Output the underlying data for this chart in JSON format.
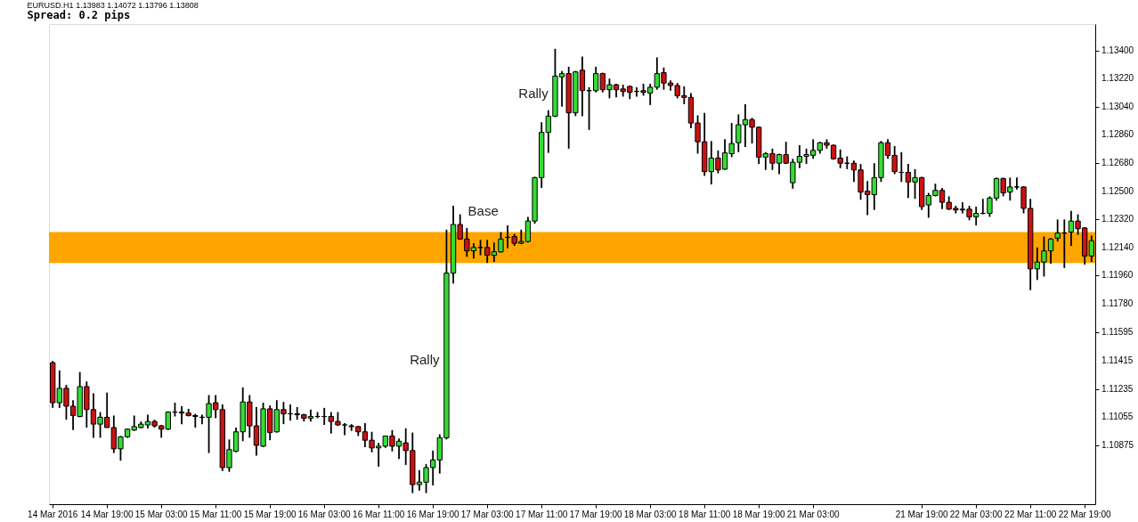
{
  "chart_data": {
    "type": "candlestick",
    "title": "EURUSD.H1  1.13983 1.14072 1.13796 1.13808",
    "subtitle": "Spread: 0.2 pips",
    "categories": [
      "14 Mar 2016",
      null,
      null,
      null,
      null,
      null,
      null,
      null,
      "14 Mar 19:00",
      null,
      null,
      null,
      null,
      null,
      null,
      null,
      "15 Mar 03:00",
      null,
      null,
      null,
      null,
      null,
      null,
      null,
      "15 Mar 11:00",
      null,
      null,
      null,
      null,
      null,
      null,
      null,
      "15 Mar 19:00",
      null,
      null,
      null,
      null,
      null,
      null,
      null,
      "16 Mar 03:00",
      null,
      null,
      null,
      null,
      null,
      null,
      null,
      "16 Mar 11:00",
      null,
      null,
      null,
      null,
      null,
      null,
      null,
      "16 Mar 19:00",
      null,
      null,
      null,
      null,
      null,
      null,
      null,
      "17 Mar 03:00",
      null,
      null,
      null,
      null,
      null,
      null,
      null,
      "17 Mar 11:00",
      null,
      null,
      null,
      null,
      null,
      null,
      null,
      "17 Mar 19:00",
      null,
      null,
      null,
      null,
      null,
      null,
      null,
      "18 Mar 03:00",
      null,
      null,
      null,
      null,
      null,
      null,
      null,
      "18 Mar 11:00",
      null,
      null,
      null,
      null,
      null,
      null,
      null,
      "18 Mar 19:00",
      null,
      null,
      null,
      null,
      null,
      null,
      null,
      "21 Mar 03:00",
      null,
      null,
      null,
      null,
      null,
      null,
      null,
      null,
      null,
      null,
      null,
      null,
      null,
      null,
      null,
      "21 Mar 19:00",
      null,
      null,
      null,
      null,
      null,
      null,
      null,
      "22 Mar 03:00",
      null,
      null,
      null,
      null,
      null,
      null,
      null,
      "22 Mar 11:00",
      null,
      null,
      null,
      null,
      null,
      null,
      null,
      "22 Mar 19:00",
      null
    ],
    "ohlc": [
      [
        1.11403,
        1.11414,
        1.11114,
        1.11147
      ],
      [
        1.11147,
        1.11354,
        1.11114,
        1.11239
      ],
      [
        1.11239,
        1.11261,
        1.11038,
        1.11125
      ],
      [
        1.11125,
        1.11163,
        1.10972,
        1.11065
      ],
      [
        1.11059,
        1.11343,
        1.11054,
        1.1125
      ],
      [
        1.1125,
        1.11283,
        1.10988,
        1.11103
      ],
      [
        1.11103,
        1.11207,
        1.10923,
        1.1101
      ],
      [
        1.1101,
        1.11087,
        1.10923,
        1.11054
      ],
      [
        1.11054,
        1.11212,
        1.10988,
        1.10988
      ],
      [
        1.10988,
        1.11065,
        1.10825,
        1.10852
      ],
      [
        1.10852,
        1.10934,
        1.10776,
        1.10929
      ],
      [
        1.10929,
        1.10983,
        1.10923,
        1.10978
      ],
      [
        1.10972,
        1.11065,
        1.10967,
        1.10994
      ],
      [
        1.10988,
        1.11027,
        1.10983,
        1.1101
      ],
      [
        1.11005,
        1.1107,
        1.10983,
        1.11027
      ],
      [
        1.11027,
        1.11038,
        1.10988,
        1.10999
      ],
      [
        1.10999,
        1.11005,
        1.10923,
        1.10978
      ],
      [
        1.10978,
        1.11092,
        1.10972,
        1.11087
      ],
      [
        1.11087,
        1.11147,
        1.11059,
        1.11087
      ],
      [
        1.11087,
        1.11125,
        1.1101,
        1.11081
      ],
      [
        1.11081,
        1.11108,
        1.11059,
        1.11065
      ],
      [
        1.11065,
        1.11076,
        1.10988,
        1.11059
      ],
      [
        1.11054,
        1.1107,
        1.1101,
        1.11054
      ],
      [
        1.11054,
        1.11196,
        1.10825,
        1.11141
      ],
      [
        1.11147,
        1.11196,
        1.11048,
        1.11103
      ],
      [
        1.11103,
        1.11136,
        1.1071,
        1.10732
      ],
      [
        1.10732,
        1.10912,
        1.10705,
        1.10847
      ],
      [
        1.10836,
        1.10988,
        1.1083,
        1.10961
      ],
      [
        1.10961,
        1.11245,
        1.10901,
        1.11152
      ],
      [
        1.11152,
        1.11196,
        1.10923,
        1.10999
      ],
      [
        1.10999,
        1.11119,
        1.10809,
        1.10874
      ],
      [
        1.10869,
        1.11147,
        1.10863,
        1.11108
      ],
      [
        1.11108,
        1.1113,
        1.10907,
        1.10956
      ],
      [
        1.10961,
        1.11163,
        1.10956,
        1.11103
      ],
      [
        1.11103,
        1.11152,
        1.1101,
        1.11076
      ],
      [
        1.11076,
        1.11136,
        1.11032,
        1.11076
      ],
      [
        1.11076,
        1.11119,
        1.11038,
        1.1107
      ],
      [
        1.1107,
        1.11076,
        1.11027,
        1.11048
      ],
      [
        1.11048,
        1.11103,
        1.11027,
        1.11059
      ],
      [
        1.11059,
        1.11087,
        1.11048,
        1.11059
      ],
      [
        1.11059,
        1.11114,
        1.11005,
        1.11059
      ],
      [
        1.11059,
        1.11087,
        1.1095,
        1.11027
      ],
      [
        1.11027,
        1.11087,
        1.10999,
        1.11005
      ],
      [
        1.11005,
        1.11016,
        1.10939,
        1.11005
      ],
      [
        1.10999,
        1.1101,
        1.10967,
        1.10994
      ],
      [
        1.10994,
        1.10999,
        1.10934,
        1.10961
      ],
      [
        1.10961,
        1.11016,
        1.10863,
        1.10907
      ],
      [
        1.10907,
        1.10961,
        1.1083,
        1.10858
      ],
      [
        1.10858,
        1.1089,
        1.10738,
        1.10869
      ],
      [
        1.10869,
        1.10934,
        1.10858,
        1.10934
      ],
      [
        1.10934,
        1.10972,
        1.10836,
        1.10869
      ],
      [
        1.10869,
        1.10918,
        1.10787,
        1.10901
      ],
      [
        1.1089,
        1.10983,
        1.10749,
        1.10841
      ],
      [
        1.10841,
        1.10956,
        1.10569,
        1.10623
      ],
      [
        1.10623,
        1.10716,
        1.10585,
        1.10639
      ],
      [
        1.10639,
        1.10754,
        1.10569,
        1.10732
      ],
      [
        1.10732,
        1.10841,
        1.10618,
        1.10781
      ],
      [
        1.10781,
        1.10945,
        1.10694,
        1.10923
      ],
      [
        1.10923,
        1.12254,
        1.10912,
        1.11976
      ],
      [
        1.11976,
        1.12407,
        1.1191,
        1.12287
      ],
      [
        1.12287,
        1.12352,
        1.12189,
        1.12194
      ],
      [
        1.12194,
        1.12265,
        1.1208,
        1.12118
      ],
      [
        1.12118,
        1.12167,
        1.12069,
        1.1214
      ],
      [
        1.1214,
        1.12189,
        1.1209,
        1.1214
      ],
      [
        1.1214,
        1.12189,
        1.12041,
        1.1209
      ],
      [
        1.1209,
        1.12172,
        1.12047,
        1.12112
      ],
      [
        1.12112,
        1.12238,
        1.12107,
        1.12194
      ],
      [
        1.12205,
        1.12281,
        1.12134,
        1.12205
      ],
      [
        1.1221,
        1.12227,
        1.1215,
        1.12167
      ],
      [
        1.12167,
        1.12254,
        1.12161,
        1.12178
      ],
      [
        1.12178,
        1.12336,
        1.12172,
        1.12309
      ],
      [
        1.12309,
        1.12592,
        1.12292,
        1.12587
      ],
      [
        1.12587,
        1.12941,
        1.12521,
        1.12876
      ],
      [
        1.12876,
        1.13018,
        1.12745,
        1.1298
      ],
      [
        1.1298,
        1.13411,
        1.12974,
        1.13236
      ],
      [
        1.13231,
        1.13269,
        1.1304,
        1.13252
      ],
      [
        1.13252,
        1.13296,
        1.12772,
        1.13001
      ],
      [
        1.13001,
        1.13269,
        1.1298,
        1.13263
      ],
      [
        1.13274,
        1.13361,
        1.1298,
        1.13143
      ],
      [
        1.13143,
        1.13165,
        1.12892,
        1.13143
      ],
      [
        1.13143,
        1.13296,
        1.13132,
        1.13252
      ],
      [
        1.13252,
        1.13258,
        1.13132,
        1.13149
      ],
      [
        1.13149,
        1.1322,
        1.13094,
        1.13181
      ],
      [
        1.13181,
        1.13187,
        1.131,
        1.13149
      ],
      [
        1.13154,
        1.13181,
        1.13105,
        1.13138
      ],
      [
        1.1317,
        1.13176,
        1.13089,
        1.13132
      ],
      [
        1.13138,
        1.13165,
        1.13105,
        1.13138
      ],
      [
        1.13143,
        1.13187,
        1.13111,
        1.13132
      ],
      [
        1.13127,
        1.13187,
        1.13051,
        1.13165
      ],
      [
        1.13165,
        1.13356,
        1.13149,
        1.13252
      ],
      [
        1.13258,
        1.13291,
        1.13149,
        1.13192
      ],
      [
        1.13192,
        1.13209,
        1.13143,
        1.13176
      ],
      [
        1.13176,
        1.13192,
        1.13094,
        1.13111
      ],
      [
        1.13111,
        1.1317,
        1.13056,
        1.131
      ],
      [
        1.131,
        1.13127,
        1.12903,
        1.12936
      ],
      [
        1.12936,
        1.12985,
        1.1274,
        1.12816
      ],
      [
        1.12816,
        1.13001,
        1.12598,
        1.12625
      ],
      [
        1.12625,
        1.12821,
        1.12543,
        1.12712
      ],
      [
        1.12712,
        1.12761,
        1.12614,
        1.12636
      ],
      [
        1.12641,
        1.12832,
        1.12636,
        1.12745
      ],
      [
        1.1274,
        1.12936,
        1.12718,
        1.12805
      ],
      [
        1.1281,
        1.12991,
        1.1275,
        1.12925
      ],
      [
        1.12925,
        1.13056,
        1.12783,
        1.12958
      ],
      [
        1.12958,
        1.12969,
        1.12805,
        1.12909
      ],
      [
        1.12909,
        1.12914,
        1.12674,
        1.12718
      ],
      [
        1.12718,
        1.1275,
        1.12636,
        1.1274
      ],
      [
        1.1274,
        1.12772,
        1.12636,
        1.12679
      ],
      [
        1.12679,
        1.1274,
        1.12609,
        1.12734
      ],
      [
        1.12734,
        1.12816,
        1.12674,
        1.12679
      ],
      [
        1.12554,
        1.12707,
        1.12516,
        1.12685
      ],
      [
        1.12685,
        1.12794,
        1.12647,
        1.12723
      ],
      [
        1.12723,
        1.12772,
        1.12674,
        1.12734
      ],
      [
        1.12729,
        1.12832,
        1.12707,
        1.12761
      ],
      [
        1.12761,
        1.12816,
        1.1274,
        1.1281
      ],
      [
        1.1281,
        1.12832,
        1.12772,
        1.12794
      ],
      [
        1.12794,
        1.12799,
        1.12701,
        1.12707
      ],
      [
        1.12712,
        1.12767,
        1.12647,
        1.12679
      ],
      [
        1.12679,
        1.12723,
        1.12641,
        1.12679
      ],
      [
        1.12679,
        1.12696,
        1.12559,
        1.12636
      ],
      [
        1.12636,
        1.12674,
        1.12445,
        1.12494
      ],
      [
        1.125,
        1.12565,
        1.12347,
        1.12478
      ],
      [
        1.12478,
        1.12679,
        1.1238,
        1.12587
      ],
      [
        1.12587,
        1.12821,
        1.12559,
        1.1281
      ],
      [
        1.1281,
        1.12832,
        1.12707,
        1.12729
      ],
      [
        1.12729,
        1.12789,
        1.12609,
        1.12625
      ],
      [
        1.1262,
        1.1275,
        1.12559,
        1.1262
      ],
      [
        1.1262,
        1.12674,
        1.12456,
        1.12559
      ],
      [
        1.12559,
        1.12641,
        1.12451,
        1.12587
      ],
      [
        1.12587,
        1.12592,
        1.1238,
        1.12401
      ],
      [
        1.12412,
        1.12489,
        1.1233,
        1.12472
      ],
      [
        1.12472,
        1.12548,
        1.12467,
        1.12505
      ],
      [
        1.12505,
        1.12521,
        1.12385,
        1.12429
      ],
      [
        1.12429,
        1.12467,
        1.1238,
        1.12385
      ],
      [
        1.1239,
        1.12407,
        1.12358,
        1.1238
      ],
      [
        1.12385,
        1.12429,
        1.12358,
        1.1238
      ],
      [
        1.12385,
        1.12407,
        1.12314,
        1.12336
      ],
      [
        1.12336,
        1.12401,
        1.12281,
        1.12358
      ],
      [
        1.12358,
        1.12451,
        1.12352,
        1.12358
      ],
      [
        1.12358,
        1.12467,
        1.12336,
        1.12456
      ],
      [
        1.12456,
        1.12587,
        1.1244,
        1.12581
      ],
      [
        1.12581,
        1.12587,
        1.12467,
        1.12489
      ],
      [
        1.12494,
        1.12587,
        1.1244,
        1.12527
      ],
      [
        1.12527,
        1.12587,
        1.1251,
        1.12527
      ],
      [
        1.12527,
        1.12532,
        1.12358,
        1.1239
      ],
      [
        1.1239,
        1.12451,
        1.11867,
        1.12003
      ],
      [
        1.12003,
        1.1214,
        1.11932,
        1.12047
      ],
      [
        1.12047,
        1.1221,
        1.11954,
        1.12118
      ],
      [
        1.12118,
        1.122,
        1.12036,
        1.12194
      ],
      [
        1.122,
        1.12319,
        1.12178,
        1.12232
      ],
      [
        1.12232,
        1.12319,
        1.12009,
        1.12232
      ],
      [
        1.12238,
        1.12374,
        1.1215,
        1.12309
      ],
      [
        1.12309,
        1.12352,
        1.12221,
        1.1226
      ],
      [
        1.12265,
        1.1227,
        1.1203,
        1.12085
      ],
      [
        1.12085,
        1.12216,
        1.12047,
        1.12183
      ]
    ],
    "colors": [
      "#cc1111",
      "#33dd33",
      "#cc1111",
      "#cc1111",
      "#33dd33",
      "#cc1111",
      "#cc1111",
      "#33dd33",
      "#cc1111",
      "#cc1111",
      "#33dd33",
      "#33dd33",
      "#33dd33",
      "#33dd33",
      "#33dd33",
      "#cc1111",
      "#cc1111",
      "#33dd33",
      "#000000",
      "#cc1111",
      "#cc1111",
      "#cc1111",
      "#000000",
      "#33dd33",
      "#cc1111",
      "#cc1111",
      "#33dd33",
      "#33dd33",
      "#33dd33",
      "#cc1111",
      "#cc1111",
      "#33dd33",
      "#cc1111",
      "#33dd33",
      "#cc1111",
      "#000000",
      "#cc1111",
      "#cc1111",
      "#33dd33",
      "#000000",
      "#000000",
      "#cc1111",
      "#cc1111",
      "#000000",
      "#cc1111",
      "#cc1111",
      "#cc1111",
      "#cc1111",
      "#33dd33",
      "#33dd33",
      "#cc1111",
      "#33dd33",
      "#cc1111",
      "#cc1111",
      "#33dd33",
      "#33dd33",
      "#33dd33",
      "#33dd33",
      "#33dd33",
      "#33dd33",
      "#cc1111",
      "#cc1111",
      "#33dd33",
      "#000000",
      "#cc1111",
      "#33dd33",
      "#33dd33",
      "#000000",
      "#cc1111",
      "#33dd33",
      "#33dd33",
      "#33dd33",
      "#33dd33",
      "#33dd33",
      "#33dd33",
      "#33dd33",
      "#cc1111",
      "#33dd33",
      "#cc1111",
      "#000000",
      "#33dd33",
      "#cc1111",
      "#33dd33",
      "#cc1111",
      "#cc1111",
      "#cc1111",
      "#000000",
      "#cc1111",
      "#33dd33",
      "#33dd33",
      "#cc1111",
      "#cc1111",
      "#cc1111",
      "#cc1111",
      "#cc1111",
      "#cc1111",
      "#cc1111",
      "#33dd33",
      "#cc1111",
      "#33dd33",
      "#33dd33",
      "#33dd33",
      "#33dd33",
      "#cc1111",
      "#cc1111",
      "#33dd33",
      "#cc1111",
      "#33dd33",
      "#cc1111",
      "#33dd33",
      "#33dd33",
      "#33dd33",
      "#33dd33",
      "#33dd33",
      "#cc1111",
      "#cc1111",
      "#cc1111",
      "#000000",
      "#cc1111",
      "#cc1111",
      "#cc1111",
      "#33dd33",
      "#33dd33",
      "#cc1111",
      "#cc1111",
      "#000000",
      "#cc1111",
      "#33dd33",
      "#cc1111",
      "#33dd33",
      "#33dd33",
      "#cc1111",
      "#cc1111",
      "#cc1111",
      "#cc1111",
      "#cc1111",
      "#33dd33",
      "#000000",
      "#33dd33",
      "#33dd33",
      "#cc1111",
      "#33dd33",
      "#000000",
      "#cc1111",
      "#cc1111",
      "#33dd33",
      "#33dd33",
      "#33dd33",
      "#33dd33",
      "#000000",
      "#33dd33",
      "#cc1111",
      "#cc1111",
      "#33dd33"
    ],
    "ylim": [
      1.10498,
      1.13569
    ],
    "yticks": [
      {
        "value": 1.134,
        "label": "1.13400"
      },
      {
        "value": 1.1322,
        "label": "1.13220"
      },
      {
        "value": 1.1304,
        "label": "1.13040"
      },
      {
        "value": 1.1286,
        "label": "1.12860"
      },
      {
        "value": 1.1268,
        "label": "1.12680"
      },
      {
        "value": 1.125,
        "label": "1.12500"
      },
      {
        "value": 1.1232,
        "label": "1.12320"
      },
      {
        "value": 1.1214,
        "label": "1.12140"
      },
      {
        "value": 1.1196,
        "label": "1.11960"
      },
      {
        "value": 1.1178,
        "label": "1.11780"
      },
      {
        "value": 1.11595,
        "label": "1.11595"
      },
      {
        "value": 1.11415,
        "label": "1.11415"
      },
      {
        "value": 1.11235,
        "label": "1.11235"
      },
      {
        "value": 1.11055,
        "label": "1.11055"
      },
      {
        "value": 1.10875,
        "label": "1.10875"
      }
    ],
    "bands": [
      {
        "axis": "y",
        "from": 1.12041,
        "to": 1.12238,
        "color": "#ffa500",
        "label": "Base"
      }
    ],
    "annotations": [
      "Rally",
      "Rally"
    ]
  }
}
